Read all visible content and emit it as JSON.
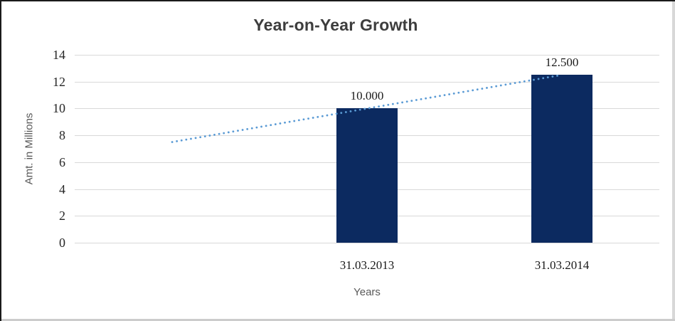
{
  "chart_data": {
    "type": "bar",
    "title": "Year-on-Year Growth",
    "categories": [
      "31.03.2013",
      "31.03.2014"
    ],
    "values": [
      10.0,
      12.5
    ],
    "data_labels": [
      "10.000",
      "12.500"
    ],
    "xlabel": "Years",
    "ylabel": "Amt. in Millions",
    "ylim": [
      0,
      14
    ],
    "yticks": [
      0,
      2,
      4,
      6,
      8,
      10,
      12,
      14
    ],
    "grid": true,
    "legend": false,
    "trendline": {
      "style": "dotted",
      "start_value": 7.5,
      "end_value": 12.5
    },
    "colors": {
      "bar": "#0c2a60",
      "trendline": "#5b9bd5",
      "gridline": "#d9d9d9",
      "title": "#3d3d3d",
      "axis_title": "#595959",
      "tick_label": "#262626"
    }
  }
}
